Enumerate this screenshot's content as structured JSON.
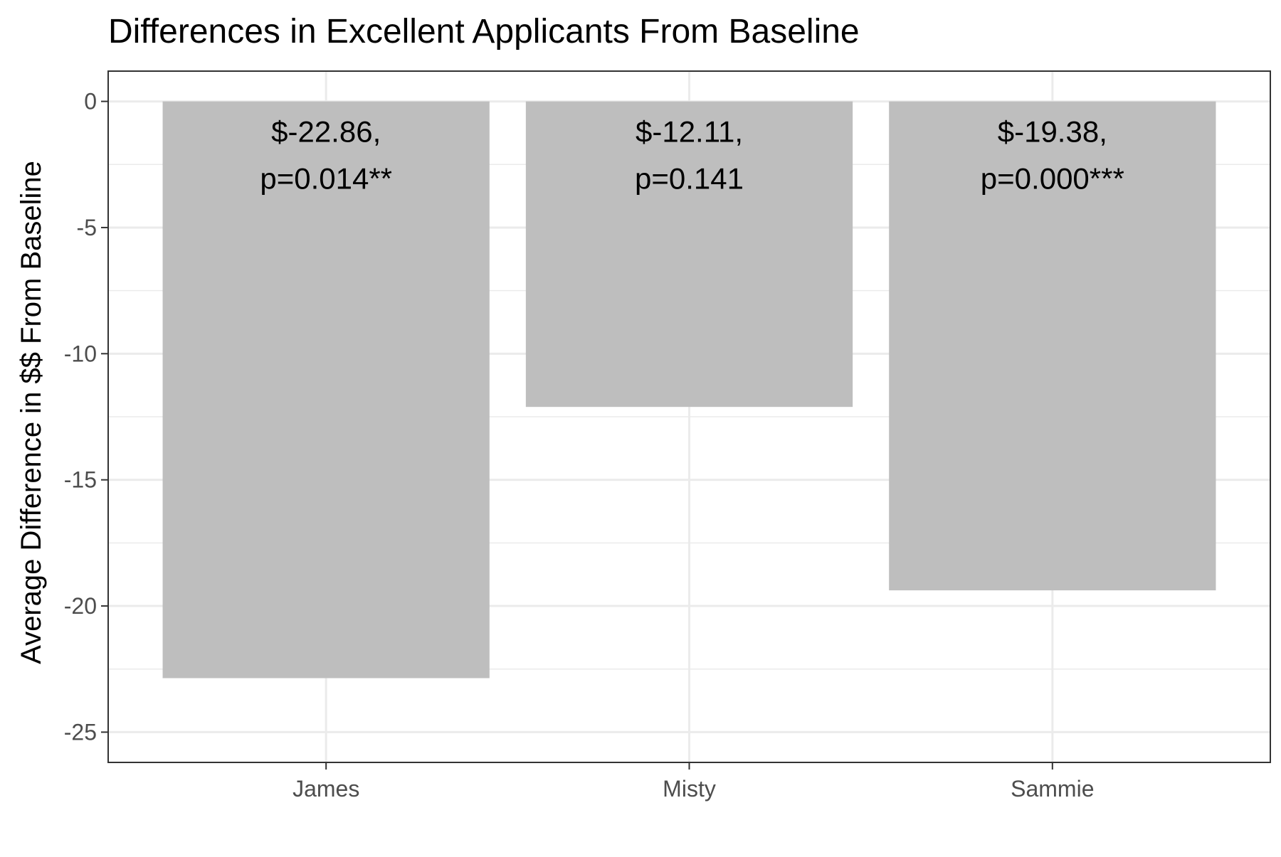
{
  "chart_data": {
    "type": "bar",
    "title": "Differences in Excellent Applicants From Baseline",
    "xlabel": "",
    "ylabel": "Average Difference in $$ From Baseline",
    "categories": [
      "James",
      "Misty",
      "Sammie"
    ],
    "values": [
      -22.86,
      -12.11,
      -19.38
    ],
    "bar_labels": [
      [
        "$-22.86,",
        "p=0.014**"
      ],
      [
        "$-12.11,",
        "p=0.141"
      ],
      [
        "$-19.38,",
        "p=0.000***"
      ]
    ],
    "ylim": [
      -26.2,
      1.2
    ],
    "yticks": [
      0,
      -5,
      -10,
      -15,
      -20,
      -25
    ],
    "ytick_labels": [
      "0",
      "-5",
      "-10",
      "-15",
      "-20",
      "-25"
    ],
    "grid": true,
    "legend": "none",
    "colors": {
      "bar": "#bebebe",
      "grid": "#ebebeb",
      "panel_border": "#333333",
      "tick_text": "#4d4d4d",
      "label_text": "#000000"
    }
  }
}
